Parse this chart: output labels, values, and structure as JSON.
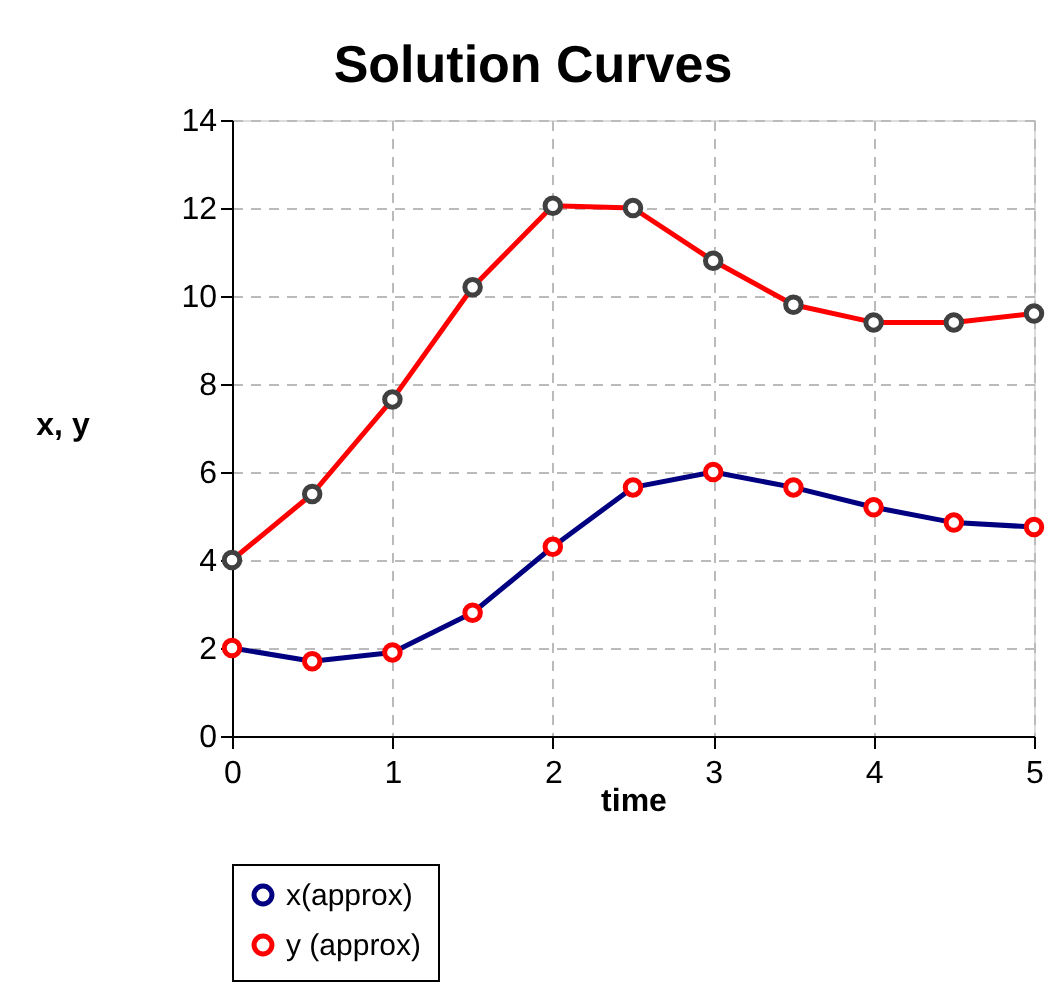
{
  "chart_data": {
    "type": "line",
    "title": "Solution Curves",
    "xlabel": "time",
    "ylabel": "x, y",
    "x": [
      0,
      0.5,
      1,
      1.5,
      2,
      2.5,
      3,
      3.5,
      4,
      4.5,
      5
    ],
    "series": [
      {
        "name": "x(approx)",
        "color": "#000080",
        "values": [
          2.0,
          1.7,
          1.9,
          2.8,
          4.3,
          5.65,
          6.0,
          5.65,
          5.2,
          4.85,
          4.75
        ]
      },
      {
        "name": "y (approx)",
        "color": "#ff0000",
        "values": [
          4.0,
          5.5,
          7.65,
          10.2,
          12.05,
          12.0,
          10.8,
          9.8,
          9.4,
          9.4,
          9.6
        ]
      }
    ],
    "xlim": [
      0,
      5
    ],
    "xticks": [
      0,
      1,
      2,
      3,
      4,
      5
    ],
    "ylim": [
      0,
      14
    ],
    "yticks": [
      0,
      2,
      4,
      6,
      8,
      10,
      12,
      14
    ],
    "grid": true,
    "legend": "bottom",
    "marker": "circle",
    "line_style": "solid"
  }
}
